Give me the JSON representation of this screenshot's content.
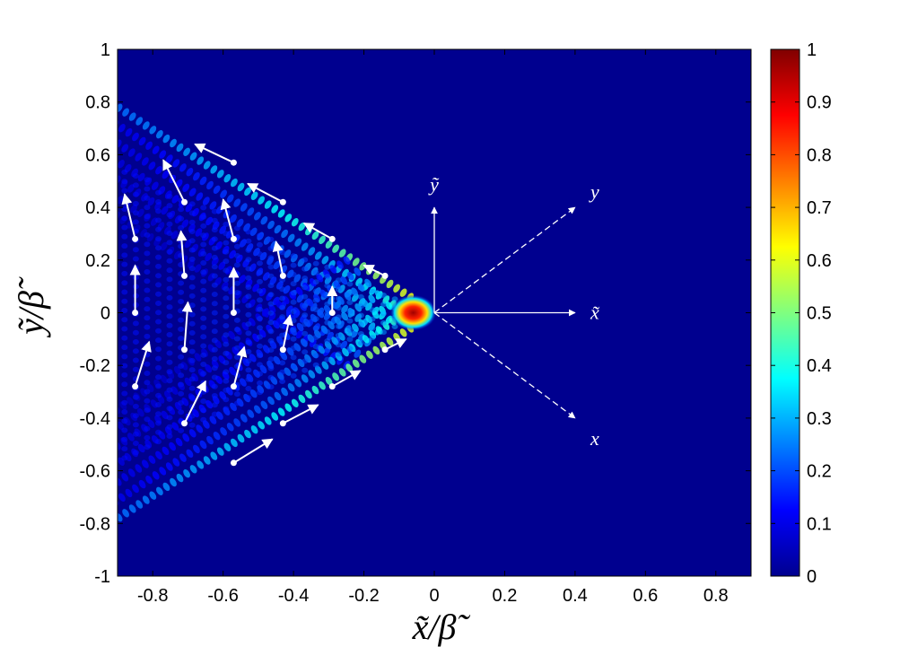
{
  "chart_data": {
    "type": "heatmap",
    "title": "",
    "xlabel": "x̃/β̃",
    "ylabel": "ỹ/β̃",
    "xlim": [
      -0.9,
      0.9
    ],
    "ylim": [
      -1,
      1
    ],
    "x_ticks": [
      "-0.8",
      "-0.6",
      "-0.4",
      "-0.2",
      "0",
      "0.2",
      "0.4",
      "0.6",
      "0.8"
    ],
    "x_tick_values": [
      -0.8,
      -0.6,
      -0.4,
      -0.2,
      0,
      0.2,
      0.4,
      0.6,
      0.8
    ],
    "y_ticks": [
      "1",
      "0.8",
      "0.6",
      "0.4",
      "0.2",
      "0",
      "-0.2",
      "-0.4",
      "-0.6",
      "-0.8",
      "-1"
    ],
    "y_tick_values": [
      1,
      0.8,
      0.6,
      0.4,
      0.2,
      0,
      -0.2,
      -0.4,
      -0.6,
      -0.8,
      -1
    ],
    "colorbar": {
      "range": [
        0,
        1
      ],
      "ticks": [
        "1",
        "0.9",
        "0.8",
        "0.7",
        "0.6",
        "0.5",
        "0.4",
        "0.3",
        "0.2",
        "0.1",
        "0"
      ],
      "tick_values": [
        1,
        0.9,
        0.8,
        0.7,
        0.6,
        0.5,
        0.4,
        0.3,
        0.2,
        0.1,
        0
      ],
      "colormap": "jet"
    },
    "wake": {
      "apex": [
        0,
        0
      ],
      "half_angle_deg": 33,
      "peak": [
        -0.06,
        0
      ],
      "peak_value": 1
    },
    "arrows": [
      {
        "x": -0.85,
        "y": 0.28,
        "dx": -0.03,
        "dy": 0.17
      },
      {
        "x": -0.85,
        "y": 0.0,
        "dx": 0.0,
        "dy": 0.18
      },
      {
        "x": -0.85,
        "y": -0.28,
        "dx": 0.04,
        "dy": 0.17
      },
      {
        "x": -0.71,
        "y": 0.42,
        "dx": -0.06,
        "dy": 0.16
      },
      {
        "x": -0.71,
        "y": 0.14,
        "dx": -0.01,
        "dy": 0.17
      },
      {
        "x": -0.71,
        "y": -0.14,
        "dx": 0.01,
        "dy": 0.18
      },
      {
        "x": -0.71,
        "y": -0.42,
        "dx": 0.06,
        "dy": 0.16
      },
      {
        "x": -0.57,
        "y": 0.57,
        "dx": -0.11,
        "dy": 0.07
      },
      {
        "x": -0.57,
        "y": 0.28,
        "dx": -0.03,
        "dy": 0.15
      },
      {
        "x": -0.57,
        "y": 0.0,
        "dx": 0.0,
        "dy": 0.17
      },
      {
        "x": -0.57,
        "y": -0.28,
        "dx": 0.03,
        "dy": 0.15
      },
      {
        "x": -0.57,
        "y": -0.57,
        "dx": 0.11,
        "dy": 0.09
      },
      {
        "x": -0.43,
        "y": 0.42,
        "dx": -0.1,
        "dy": 0.07
      },
      {
        "x": -0.43,
        "y": 0.14,
        "dx": -0.02,
        "dy": 0.13
      },
      {
        "x": -0.43,
        "y": -0.14,
        "dx": 0.02,
        "dy": 0.13
      },
      {
        "x": -0.43,
        "y": -0.42,
        "dx": 0.1,
        "dy": 0.07
      },
      {
        "x": -0.29,
        "y": 0.28,
        "dx": -0.08,
        "dy": 0.06
      },
      {
        "x": -0.29,
        "y": 0.0,
        "dx": 0.0,
        "dy": 0.1
      },
      {
        "x": -0.29,
        "y": -0.28,
        "dx": 0.08,
        "dy": 0.06
      },
      {
        "x": -0.14,
        "y": 0.14,
        "dx": -0.06,
        "dy": 0.04
      },
      {
        "x": -0.14,
        "y": -0.14,
        "dx": 0.06,
        "dy": 0.04
      }
    ],
    "frames": [
      {
        "label": "ỹ",
        "style": "solid",
        "dx": 0,
        "dy": 0.4
      },
      {
        "label": "x̃",
        "style": "solid",
        "dx": 0.4,
        "dy": 0
      },
      {
        "label": "y",
        "style": "dashed",
        "dx": 0.4,
        "dy": 0.4
      },
      {
        "label": "x",
        "style": "dashed",
        "dx": 0.4,
        "dy": -0.4
      }
    ]
  }
}
